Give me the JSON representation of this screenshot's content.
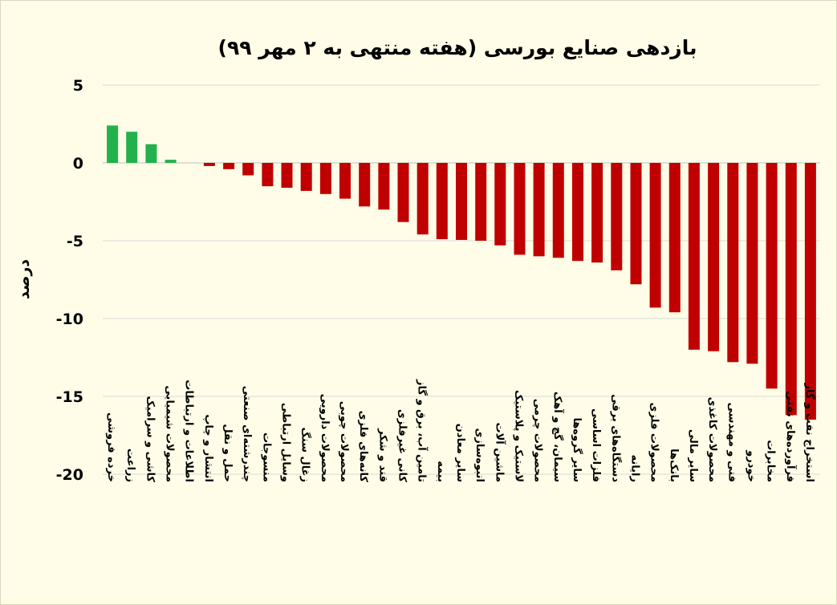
{
  "chart_data": {
    "type": "bar",
    "title": "بازدهی صنایع بورسی (هفته منتهی به ۲ مهر ۹۹)",
    "xlabel": "",
    "ylabel": "درصد",
    "ylim": [
      -20,
      5
    ],
    "yticks": [
      5,
      0,
      -5,
      -10,
      -15,
      -20
    ],
    "ytick_labels": [
      "5",
      "0",
      "-5",
      "-10",
      "-15",
      "-20"
    ],
    "grid": true,
    "legend": "none",
    "colors": {
      "positive": "#22b14c",
      "negative": "#c00000"
    },
    "categories": [
      "خرده فروشی",
      "زراعت",
      "کاشی و سرامیک",
      "محصولات شیمیایی",
      "اطلاعات و ارتباطات",
      "انتشار و چاپ",
      "حمل و نقل",
      "چندرشته‌ای صنعتی",
      "منسوجات",
      "وسایل ارتباطی",
      "زغال سنگ",
      "محصولات دارویی",
      "محصولات چوبی",
      "کانه‌های فلزی",
      "قند و شکر",
      "کانی غیرفلزی",
      "تامین آب، برق و گاز",
      "بیمه",
      "سایر معادن",
      "انبوه‌سازی",
      "ماشین آلات",
      "لاستیک و پلاستیک",
      "محصولات چرمی",
      "سیمان، گچ و آهک",
      "سایر گروه‌ها",
      "فلزات اساسی",
      "دستگاه‌های برقی",
      "رایانه",
      "محصولات فلزی",
      "بانک‌ها",
      "سایر مالی",
      "محصولات کاغذی",
      "فنی و مهندسی",
      "خودرو",
      "مخابرات",
      "فرآورده‌های نفتی",
      "استخراج نفت و گاز"
    ],
    "values": [
      2.4,
      2.0,
      1.2,
      0.2,
      0.0,
      -0.2,
      -0.4,
      -0.8,
      -1.5,
      -1.6,
      -1.8,
      -2.0,
      -2.3,
      -2.8,
      -3.0,
      -3.8,
      -4.6,
      -4.9,
      -4.95,
      -5.0,
      -5.3,
      -5.9,
      -6.0,
      -6.1,
      -6.3,
      -6.4,
      -6.9,
      -7.8,
      -9.3,
      -9.6,
      -12.0,
      -12.1,
      -12.8,
      -12.9,
      -14.5,
      -16.2,
      -16.5
    ]
  }
}
